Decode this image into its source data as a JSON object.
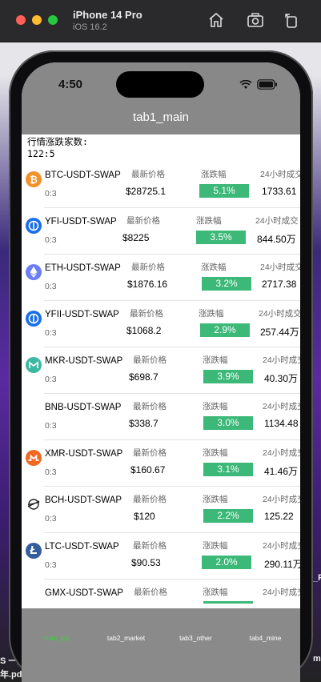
{
  "simulator": {
    "device": "iPhone 14 Pro",
    "os": "iOS 16.2"
  },
  "status": {
    "time": "4:50"
  },
  "nav": {
    "title": "tab1_main"
  },
  "summary": {
    "label": "行情涨跌家数:",
    "value": "122:5"
  },
  "columns": {
    "price": "最新价格",
    "change": "涨跌幅",
    "volume": "24小时成交"
  },
  "rows": [
    {
      "pair": "BTC-USDT-SWAP",
      "ratio": "0:3",
      "price": "$28725.1",
      "change": "5.1%",
      "volume": "1733.61",
      "icon": "bitcoin-icon",
      "color": "#f2902b"
    },
    {
      "pair": "YFI-USDT-SWAP",
      "ratio": "0:3",
      "price": "$8225",
      "change": "3.5%",
      "volume": "844.50万",
      "icon": "yfi-icon",
      "color": "#1c6ee8"
    },
    {
      "pair": "ETH-USDT-SWAP",
      "ratio": "0:3",
      "price": "$1876.16",
      "change": "3.2%",
      "volume": "2717.38",
      "icon": "ethereum-icon",
      "color": "#6d7ef2"
    },
    {
      "pair": "YFII-USDT-SWAP",
      "ratio": "0:3",
      "price": "$1068.2",
      "change": "2.9%",
      "volume": "257.44万",
      "icon": "yfii-icon",
      "color": "#1c6ee8"
    },
    {
      "pair": "MKR-USDT-SWAP",
      "ratio": "0:3",
      "price": "$698.7",
      "change": "3.9%",
      "volume": "40.30万",
      "icon": "maker-icon",
      "color": "#3db9a2"
    },
    {
      "pair": "BNB-USDT-SWAP",
      "ratio": "0:3",
      "price": "$338.7",
      "change": "3.0%",
      "volume": "1134.48",
      "icon": "",
      "color": "#ffffff"
    },
    {
      "pair": "XMR-USDT-SWAP",
      "ratio": "0:3",
      "price": "$160.67",
      "change": "3.1%",
      "volume": "41.46万",
      "icon": "monero-icon",
      "color": "#f26822"
    },
    {
      "pair": "BCH-USDT-SWAP",
      "ratio": "0:3",
      "price": "$120",
      "change": "2.2%",
      "volume": "125.22",
      "icon": "stellar-icon",
      "color": "#222222"
    },
    {
      "pair": "LTC-USDT-SWAP",
      "ratio": "0:3",
      "price": "$90.53",
      "change": "2.0%",
      "volume": "290.11万",
      "icon": "litecoin-icon",
      "color": "#345d9d"
    },
    {
      "pair": "GMX-USDT-SWAP",
      "ratio": "",
      "price": "",
      "change": "",
      "volume": "",
      "icon": "",
      "color": "#ffffff"
    }
  ],
  "tabs": [
    {
      "label": "main_tab",
      "active": true
    },
    {
      "label": "tab2_market",
      "active": false
    },
    {
      "label": "tab3_other",
      "active": false
    },
    {
      "label": "tab4_mine",
      "active": false
    }
  ],
  "desktop": {
    "text1": "S 一元",
    "text2": "年.pd",
    "text3": "m",
    "text4": "_F"
  }
}
